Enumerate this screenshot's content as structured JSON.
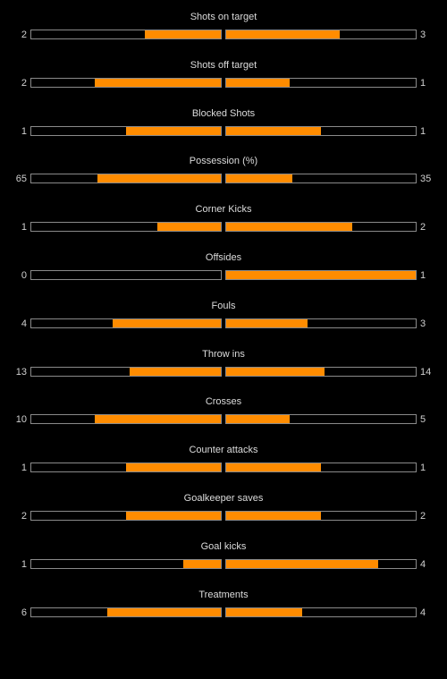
{
  "colors": {
    "background": "#000000",
    "fill": "#ff8c00",
    "bar_border": "#8a8a8a",
    "text": "#dcdcdc"
  },
  "stats": [
    {
      "label": "Shots on target",
      "home": "2",
      "away": "3",
      "home_share": 0.4,
      "away_share": 0.6
    },
    {
      "label": "Shots off target",
      "home": "2",
      "away": "1",
      "home_share": 0.667,
      "away_share": 0.333
    },
    {
      "label": "Blocked Shots",
      "home": "1",
      "away": "1",
      "home_share": 0.5,
      "away_share": 0.5
    },
    {
      "label": "Possession (%)",
      "home": "65",
      "away": "35",
      "home_share": 0.65,
      "away_share": 0.35
    },
    {
      "label": "Corner Kicks",
      "home": "1",
      "away": "2",
      "home_share": 0.333,
      "away_share": 0.667
    },
    {
      "label": "Offsides",
      "home": "0",
      "away": "1",
      "home_share": 0.0,
      "away_share": 1.0
    },
    {
      "label": "Fouls",
      "home": "4",
      "away": "3",
      "home_share": 0.571,
      "away_share": 0.429
    },
    {
      "label": "Throw ins",
      "home": "13",
      "away": "14",
      "home_share": 0.481,
      "away_share": 0.519
    },
    {
      "label": "Crosses",
      "home": "10",
      "away": "5",
      "home_share": 0.667,
      "away_share": 0.333
    },
    {
      "label": "Counter attacks",
      "home": "1",
      "away": "1",
      "home_share": 0.5,
      "away_share": 0.5
    },
    {
      "label": "Goalkeeper saves",
      "home": "2",
      "away": "2",
      "home_share": 0.5,
      "away_share": 0.5
    },
    {
      "label": "Goal kicks",
      "home": "1",
      "away": "4",
      "home_share": 0.2,
      "away_share": 0.8
    },
    {
      "label": "Treatments",
      "home": "6",
      "away": "4",
      "home_share": 0.6,
      "away_share": 0.4
    }
  ]
}
